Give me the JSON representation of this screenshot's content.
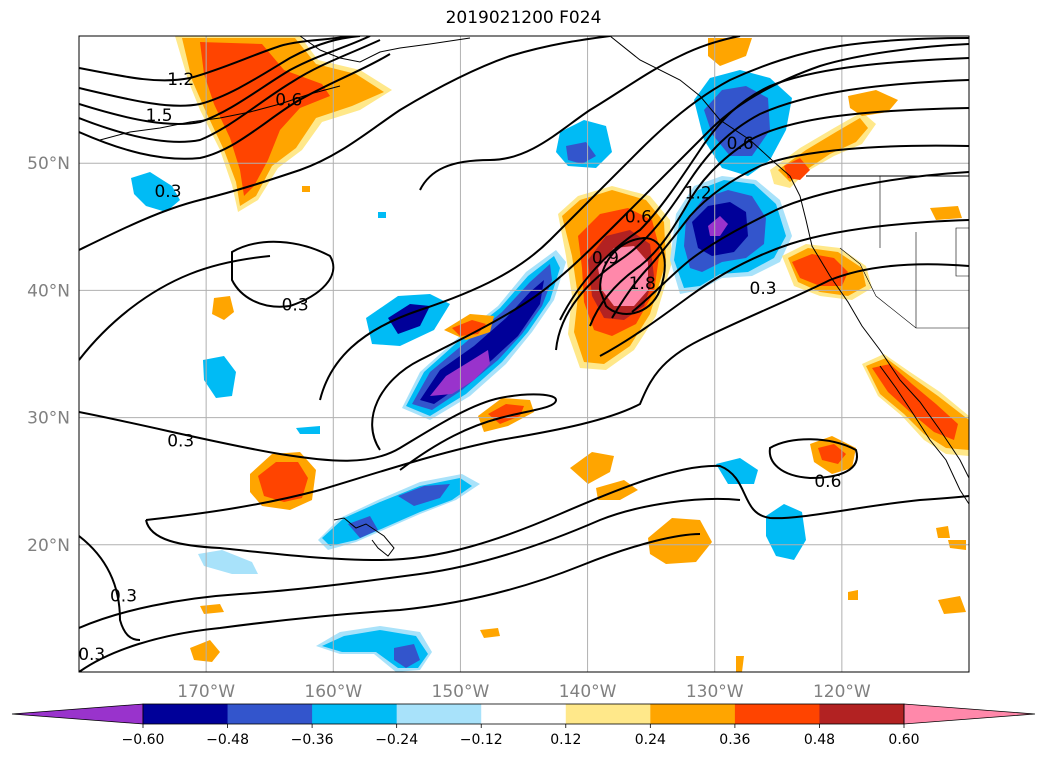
{
  "title": "2019021200 F024",
  "map": {
    "lon_range": [
      -180,
      -110
    ],
    "lat_range": [
      10,
      60
    ],
    "lat_ticks": [
      {
        "value": 20,
        "label": "20°N"
      },
      {
        "value": 30,
        "label": "30°N"
      },
      {
        "value": 40,
        "label": "40°N"
      },
      {
        "value": 50,
        "label": "50°N"
      }
    ],
    "lon_ticks": [
      {
        "value": -170,
        "label": "170°W"
      },
      {
        "value": -160,
        "label": "160°W"
      },
      {
        "value": -150,
        "label": "150°W"
      },
      {
        "value": -140,
        "label": "140°W"
      },
      {
        "value": -130,
        "label": "130°W"
      },
      {
        "value": -120,
        "label": "120°W"
      }
    ],
    "contour_labels": [
      {
        "text": "1.2",
        "lon": -172,
        "lat": 56.6
      },
      {
        "text": "1.5",
        "lon": -173.7,
        "lat": 53.8
      },
      {
        "text": "0.6",
        "lon": -163.5,
        "lat": 55
      },
      {
        "text": "0.3",
        "lon": -173,
        "lat": 47.8
      },
      {
        "text": "0.3",
        "lon": -163,
        "lat": 38.9
      },
      {
        "text": "0.3",
        "lon": -172,
        "lat": 28.2
      },
      {
        "text": "0.3",
        "lon": -176.5,
        "lat": 16
      },
      {
        "text": "0.3",
        "lon": -179,
        "lat": 11.4
      },
      {
        "text": "0.6",
        "lon": -136,
        "lat": 45.8
      },
      {
        "text": "0.9",
        "lon": -138.6,
        "lat": 42.6
      },
      {
        "text": "1.2",
        "lon": -131.3,
        "lat": 47.7
      },
      {
        "text": "1.8",
        "lon": -135.7,
        "lat": 40.6
      },
      {
        "text": "0.6",
        "lon": -128,
        "lat": 51.6
      },
      {
        "text": "0.3",
        "lon": -126.2,
        "lat": 40.2
      },
      {
        "text": "0.6",
        "lon": -121.1,
        "lat": 25
      }
    ]
  },
  "colorbar": {
    "colors": [
      "#9933cc",
      "#000099",
      "#3355cc",
      "#00bbf5",
      "#a8e2fa",
      "#ffffff",
      "#ffe88a",
      "#ffa500",
      "#ff4400",
      "#b22222",
      "#ff88aa"
    ],
    "ticks": [
      "−0.60",
      "−0.48",
      "−0.36",
      "−0.24",
      "−0.12",
      "0.12",
      "0.24",
      "0.36",
      "0.48",
      "0.60"
    ]
  }
}
